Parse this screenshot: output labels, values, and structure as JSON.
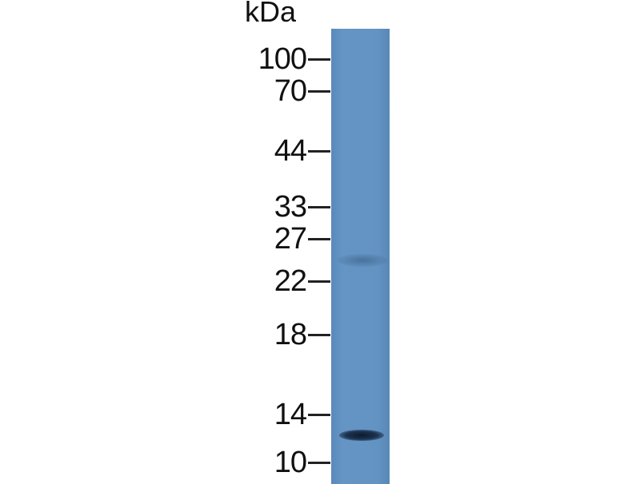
{
  "unit_label": "kDa",
  "markers": [
    "100",
    "70",
    "44",
    "33",
    "27",
    "22",
    "18",
    "14",
    "10"
  ],
  "lane_color": "#6393c2",
  "bands": [
    {
      "name": "main band",
      "approx_kda": 12.5,
      "intensity": "strong"
    },
    {
      "name": "faint band",
      "approx_kda": 24,
      "intensity": "weak"
    }
  ]
}
